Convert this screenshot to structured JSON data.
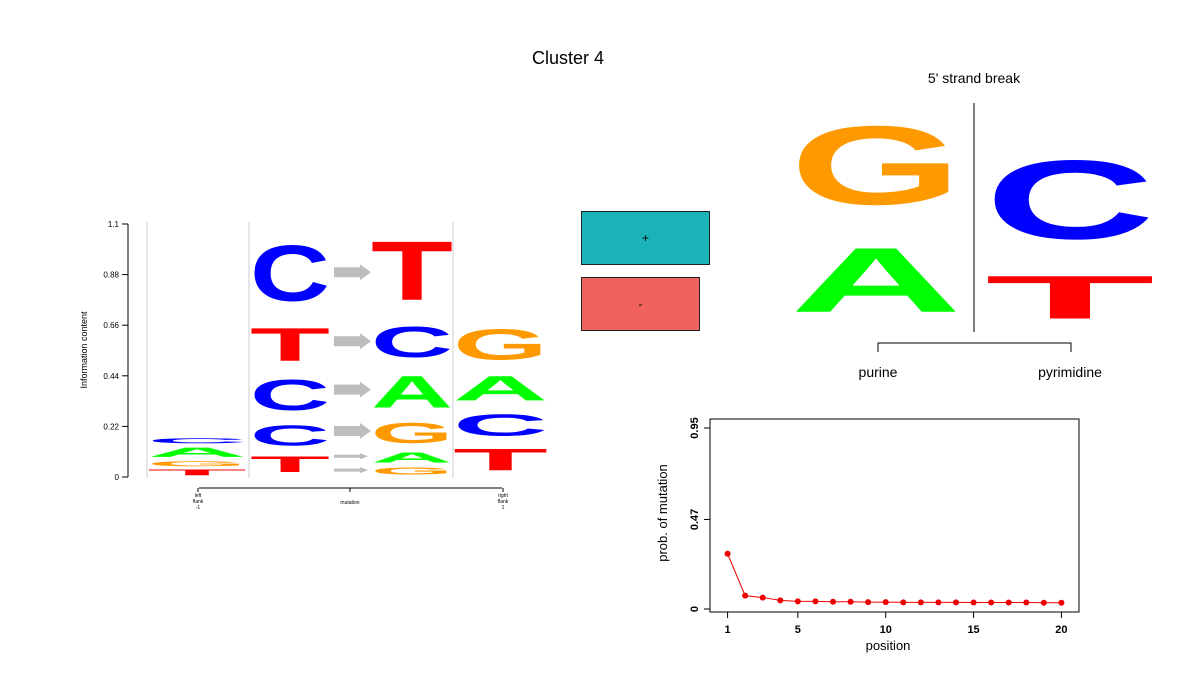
{
  "title": "Cluster 4",
  "colors": {
    "A": "#00ff00",
    "C": "#0000ff",
    "G": "#ff9900",
    "T": "#ff0000",
    "arrow": "#bdbdbd",
    "plus": "#1bb2b8",
    "minus": "#f0625e",
    "point": "#ee0000"
  },
  "strand": {
    "plus_label": "+",
    "minus_label": "-"
  },
  "chart_data": [
    {
      "type": "sequence-logo",
      "ylabel": "Information content",
      "yticks": [
        "0",
        "0.22",
        "0.44",
        "0.66",
        "0.88",
        "1.1"
      ],
      "ylim": [
        0,
        1.1
      ],
      "xtick_labels": [
        "left\nflank\n-1",
        "mutation",
        "right\nflank\n1"
      ],
      "left_flank": [
        {
          "base": "T",
          "y0": 0.0,
          "y1": 0.04
        },
        {
          "base": "G",
          "y0": 0.04,
          "y1": 0.075
        },
        {
          "base": "A",
          "y0": 0.075,
          "y1": 0.14
        },
        {
          "base": "C",
          "y0": 0.14,
          "y1": 0.175
        }
      ],
      "mutation_from": [
        {
          "base": "T",
          "y0": 0.0,
          "y1": 0.11
        },
        {
          "base": "C",
          "y0": 0.11,
          "y1": 0.25
        },
        {
          "base": "C",
          "y0": 0.25,
          "y1": 0.46
        },
        {
          "base": "T",
          "y0": 0.46,
          "y1": 0.69
        },
        {
          "base": "C",
          "y0": 0.69,
          "y1": 1.08
        }
      ],
      "mutation_to": [
        {
          "base": "G",
          "y0": 0.0,
          "y1": 0.05
        },
        {
          "base": "A",
          "y0": 0.05,
          "y1": 0.12
        },
        {
          "base": "G",
          "y0": 0.12,
          "y1": 0.26
        },
        {
          "base": "A",
          "y0": 0.26,
          "y1": 0.48
        },
        {
          "base": "C",
          "y0": 0.48,
          "y1": 0.69
        },
        {
          "base": "T",
          "y0": 0.69,
          "y1": 1.1
        }
      ],
      "right_flank": [
        {
          "base": "T",
          "y0": 0.0,
          "y1": 0.15
        },
        {
          "base": "C",
          "y0": 0.15,
          "y1": 0.3
        },
        {
          "base": "A",
          "y0": 0.3,
          "y1": 0.47
        },
        {
          "base": "G",
          "y0": 0.47,
          "y1": 0.68
        }
      ],
      "arrows": [
        0.03,
        0.09,
        0.2,
        0.38,
        0.59,
        0.89
      ]
    },
    {
      "type": "sequence-logo",
      "title": "5' strand break",
      "group_labels": [
        "purine",
        "pyrimidine"
      ],
      "left_group": [
        {
          "base": "A",
          "y0": 0.0,
          "y1": 0.45
        },
        {
          "base": "G",
          "y0": 0.45,
          "y1": 1.0
        }
      ],
      "right_group": [
        {
          "base": "T",
          "y0": 0.0,
          "y1": 0.3
        },
        {
          "base": "C",
          "y0": 0.3,
          "y1": 0.85
        }
      ]
    },
    {
      "type": "scatter",
      "xlabel": "position",
      "ylabel": "prob. of mutation",
      "xticks": [
        "1",
        "5",
        "10",
        "15",
        "20"
      ],
      "yticks": [
        "0",
        "0.47",
        "0.95"
      ],
      "xlim": [
        0,
        21
      ],
      "ylim": [
        0,
        0.95
      ],
      "x": [
        1,
        2,
        3,
        4,
        5,
        6,
        7,
        8,
        9,
        10,
        11,
        12,
        13,
        14,
        15,
        16,
        17,
        18,
        19,
        20
      ],
      "y": [
        0.29,
        0.07,
        0.06,
        0.045,
        0.04,
        0.04,
        0.038,
        0.038,
        0.036,
        0.036,
        0.035,
        0.035,
        0.035,
        0.035,
        0.034,
        0.034,
        0.034,
        0.034,
        0.033,
        0.033
      ]
    }
  ]
}
